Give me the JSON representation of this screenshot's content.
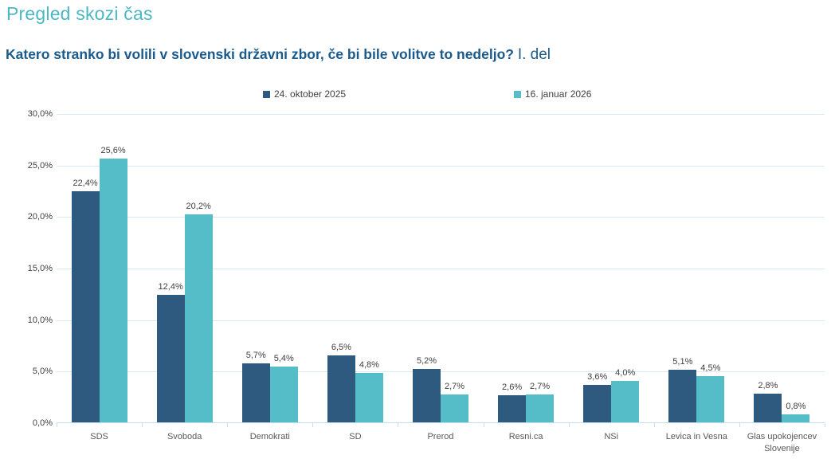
{
  "header": {
    "title": "Pregled skozi čas",
    "subtitle_main": "Katero stranko bi volili v slovenski državni zbor, če bi bile volitve to nedeljo?",
    "subtitle_suffix": "I. del"
  },
  "colors": {
    "title": "#4CB8C4",
    "subtitle": "#1A5A8C",
    "series1": "#2D5A7E",
    "series2": "#54BDC7",
    "gridline": "#D5E9F6",
    "axis_line": "#C3DFF2",
    "value_label_text": "#404040",
    "category_label_text": "#595959"
  },
  "chart_data": {
    "type": "bar",
    "title": "Katero stranko bi volili v slovenski državni zbor, če bi bile volitve to nedeljo? I. del",
    "categories": [
      "SDS",
      "Svoboda",
      "Demokrati",
      "SD",
      "Prerod",
      "Resni.ca",
      "NSi",
      "Levica in Vesna",
      "Glas upokojencev Slovenije"
    ],
    "series": [
      {
        "name": "24. oktober 2025",
        "color": "#2D5A7E",
        "values": [
          22.4,
          12.4,
          5.7,
          6.5,
          5.2,
          2.6,
          3.6,
          5.1,
          2.8
        ],
        "value_labels": [
          "22,4%",
          "12,4%",
          "5,7%",
          "6,5%",
          "5,2%",
          "2,6%",
          "3,6%",
          "5,1%",
          "2,8%"
        ]
      },
      {
        "name": "16. januar 2026",
        "color": "#54BDC7",
        "values": [
          25.6,
          20.2,
          5.4,
          4.8,
          2.7,
          2.7,
          4.0,
          4.5,
          0.8
        ],
        "value_labels": [
          "25,6%",
          "20,2%",
          "5,4%",
          "4,8%",
          "2,7%",
          "2,7%",
          "4,0%",
          "4,5%",
          "0,8%"
        ]
      }
    ],
    "xlabel": "",
    "ylabel": "",
    "ylim": [
      0,
      30
    ],
    "y_tick_labels": [
      "0,0%",
      "5,0%",
      "10,0%",
      "15,0%",
      "20,0%",
      "25,0%",
      "30,0%"
    ],
    "grid": true,
    "legend_position": "top"
  }
}
